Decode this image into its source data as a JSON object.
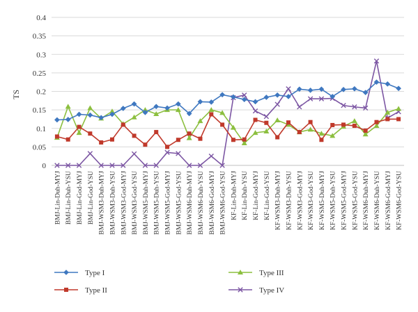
{
  "chart_data": {
    "type": "line",
    "ylabel": "TS",
    "xlabel": "",
    "ylim": [
      0,
      0.4
    ],
    "yticks": [
      "0",
      "0.05",
      "0.1",
      "0.15",
      "0.2",
      "0.25",
      "0.3",
      "0.35",
      "0.4"
    ],
    "grid": "horizontal",
    "legend_placement": "bottom",
    "categories": [
      "BMJ-Lin-Duh-MYJ",
      "BMJ-Lin-Duh-YSU",
      "BMJ-Lin-God-MYJ",
      "BMJ-Lin-God-YSU",
      "BMJ-WSM3-Duh-MYJ",
      "BMJ-WSM3-Duh-YSU",
      "BMJ-WSM3-God-MYJ",
      "BMJ-WSM3-God-YSU",
      "BMJ-WSM5-Duh-MYJ",
      "BMJ-WSM5-Duh-YSU",
      "BMJ-WSM5-God-MYJ",
      "BMJ-WSM5-God-YSU",
      "BMJ-WSM6-Duh-MYJ",
      "BMJ-WSM6-Duh-YSU",
      "BMJ-WSM6-God-MYJ",
      "BMJ-WSM6-God-YSU",
      "KF-Lin-Duh-MYJ",
      "KF-Lin-Duh-YSU",
      "KF-Lin-God-MYJ",
      "KF-Lin-God-YSU",
      "KF-WSM3-Duh-MYJ",
      "KF-WSM3-Duh-YSU",
      "KF-WSM3-God-MYJ",
      "KF-WSM3-God-YSU",
      "KF-WSM5-Duh-MYJ",
      "KF-WSM5-Duh-YSU",
      "KF-WSM5-God-MYJ",
      "KF-WSM5-God-YSU",
      "KF-WSM6-Duh-MYJ",
      "KF-WSM6-Duh-YSU",
      "KF-WSM6-God-MYJ",
      "KF-WSM6-God-YSU"
    ],
    "series": [
      {
        "name": "Type I",
        "color": "#3f78c0",
        "marker": "diamond",
        "values": [
          0.123,
          0.124,
          0.138,
          0.136,
          0.129,
          0.138,
          0.154,
          0.166,
          0.143,
          0.159,
          0.155,
          0.166,
          0.14,
          0.172,
          0.171,
          0.191,
          0.185,
          0.178,
          0.172,
          0.184,
          0.19,
          0.186,
          0.206,
          0.203,
          0.206,
          0.186,
          0.205,
          0.207,
          0.197,
          0.225,
          0.22,
          0.208
        ]
      },
      {
        "name": "Type II",
        "color": "#c0392b",
        "marker": "square",
        "values": [
          0.078,
          0.07,
          0.104,
          0.086,
          0.062,
          0.07,
          0.11,
          0.08,
          0.056,
          0.09,
          0.05,
          0.069,
          0.086,
          0.072,
          0.138,
          0.11,
          0.069,
          0.07,
          0.123,
          0.115,
          0.076,
          0.116,
          0.09,
          0.117,
          0.069,
          0.109,
          0.11,
          0.107,
          0.094,
          0.117,
          0.125,
          0.125
        ]
      },
      {
        "name": "Type III",
        "color": "#8cbf3f",
        "marker": "triangle",
        "values": [
          0.075,
          0.159,
          0.088,
          0.155,
          0.127,
          0.146,
          0.112,
          0.13,
          0.15,
          0.139,
          0.15,
          0.15,
          0.074,
          0.12,
          0.15,
          0.142,
          0.102,
          0.06,
          0.088,
          0.092,
          0.122,
          0.11,
          0.09,
          0.097,
          0.086,
          0.08,
          0.105,
          0.12,
          0.084,
          0.107,
          0.143,
          0.153
        ]
      },
      {
        "name": "Type IV",
        "color": "#7c56a3",
        "marker": "x",
        "values": [
          0.0,
          0.0,
          0.0,
          0.032,
          0.0,
          0.0,
          0.0,
          0.031,
          0.0,
          0.0,
          0.035,
          0.032,
          0.0,
          0.0,
          0.025,
          0.0,
          0.183,
          0.19,
          0.147,
          0.132,
          0.165,
          0.207,
          0.158,
          0.18,
          0.18,
          0.181,
          0.162,
          0.158,
          0.155,
          0.282,
          0.128,
          0.145
        ]
      }
    ]
  }
}
